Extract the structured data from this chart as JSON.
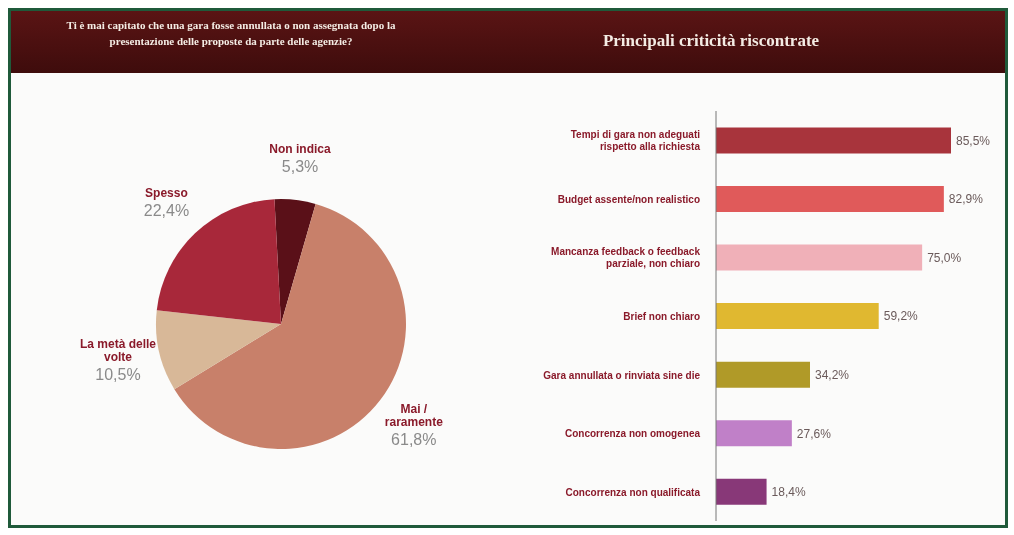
{
  "chart_data": [
    {
      "type": "pie",
      "title": "Ti è mai capitato che una gara fosse annullata o non assegnata dopo la presentazione delle proposte da parte delle agenzie?",
      "categories": [
        "Non indica",
        "Mai / raramente",
        "La metà delle volte",
        "Spesso"
      ],
      "values": [
        5.3,
        61.8,
        10.5,
        22.4
      ],
      "value_labels": [
        "5,3%",
        "61,8%",
        "10,5%",
        "22,4%"
      ],
      "colors": [
        "#5a1018",
        "#c8806a",
        "#d8b898",
        "#a8283a"
      ]
    },
    {
      "type": "bar",
      "orientation": "horizontal",
      "title": "Principali criticità riscontrate",
      "categories": [
        "Tempi di gara non adeguati rispetto alla richiesta",
        "Budget assente/non realistico",
        "Mancanza feedback o feedback parziale, non chiaro",
        "Brief non chiaro",
        "Gara annullata o rinviata sine die",
        "Concorrenza non omogenea",
        "Concorrenza non qualificata"
      ],
      "values": [
        85.5,
        82.9,
        75.0,
        59.2,
        34.2,
        27.6,
        18.4
      ],
      "value_labels": [
        "85,5%",
        "82,9%",
        "75,0%",
        "59,2%",
        "34,2%",
        "27,6%",
        "18,4%"
      ],
      "colors": [
        "#a8343c",
        "#e05a5a",
        "#f0b0b8",
        "#e0b830",
        "#b09a28",
        "#c080c8",
        "#883878"
      ]
    }
  ]
}
